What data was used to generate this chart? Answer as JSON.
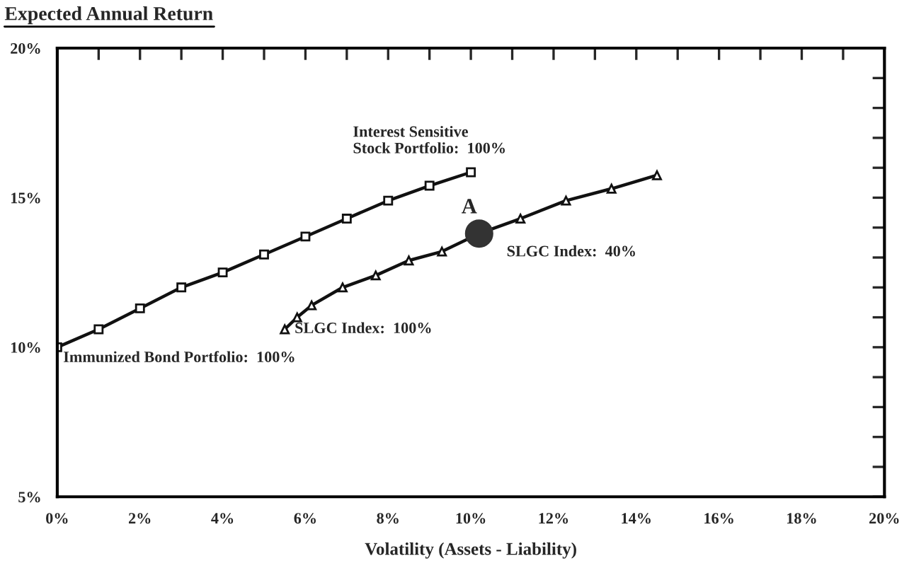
{
  "chart_data": {
    "type": "line",
    "title": "Expected Annual Return",
    "xlabel": "Volatility (Assets - Liability)",
    "xlim": [
      0,
      20
    ],
    "ylim": [
      5,
      20
    ],
    "xticks": [
      {
        "value": 0,
        "label": "0%"
      },
      {
        "value": 1,
        "label": null
      },
      {
        "value": 2,
        "label": "2%"
      },
      {
        "value": 3,
        "label": null
      },
      {
        "value": 4,
        "label": "4%"
      },
      {
        "value": 5,
        "label": null
      },
      {
        "value": 6,
        "label": "6%"
      },
      {
        "value": 7,
        "label": null
      },
      {
        "value": 8,
        "label": "8%"
      },
      {
        "value": 9,
        "label": null
      },
      {
        "value": 10,
        "label": "10%"
      },
      {
        "value": 11,
        "label": null
      },
      {
        "value": 12,
        "label": "12%"
      },
      {
        "value": 13,
        "label": null
      },
      {
        "value": 14,
        "label": "14%"
      },
      {
        "value": 15,
        "label": null
      },
      {
        "value": 16,
        "label": "16%"
      },
      {
        "value": 17,
        "label": null
      },
      {
        "value": 18,
        "label": "18%"
      },
      {
        "value": 19,
        "label": null
      },
      {
        "value": 20,
        "label": "20%"
      }
    ],
    "yticks": [
      {
        "value": 5,
        "label": "5%"
      },
      {
        "value": 6,
        "label": null
      },
      {
        "value": 7,
        "label": null
      },
      {
        "value": 8,
        "label": null
      },
      {
        "value": 9,
        "label": null
      },
      {
        "value": 10,
        "label": "10%"
      },
      {
        "value": 11,
        "label": null
      },
      {
        "value": 12,
        "label": null
      },
      {
        "value": 13,
        "label": null
      },
      {
        "value": 14,
        "label": null
      },
      {
        "value": 15,
        "label": "15%"
      },
      {
        "value": 16,
        "label": null
      },
      {
        "value": 17,
        "label": null
      },
      {
        "value": 18,
        "label": null
      },
      {
        "value": 19,
        "label": null
      },
      {
        "value": 20,
        "label": "20%"
      }
    ],
    "grid": false,
    "line_style": "solid",
    "series": [
      {
        "color": "#111111",
        "marker": "square",
        "x": [
          0,
          1,
          2,
          3,
          4,
          5,
          6,
          7,
          8,
          9,
          10
        ],
        "values": [
          10.0,
          10.6,
          11.3,
          12.0,
          12.5,
          13.1,
          13.7,
          14.3,
          14.9,
          15.4,
          15.85
        ]
      },
      {
        "color": "#111111",
        "marker": "triangle",
        "x": [
          5.5,
          5.8,
          6.15,
          6.9,
          7.7,
          8.5,
          9.3,
          10.2,
          11.2,
          12.3,
          13.4,
          14.5
        ],
        "values": [
          10.6,
          11.0,
          11.4,
          12.0,
          12.4,
          12.9,
          13.2,
          13.8,
          14.3,
          14.9,
          15.3,
          15.75
        ]
      },
      {
        "type": "scatter",
        "color": "#333333",
        "marker": "circle",
        "x": [
          10.2
        ],
        "values": [
          13.8
        ]
      }
    ],
    "annotations": [
      {
        "text": "Interest Sensitive\nStock Portfolio:  100%",
        "x": 10,
        "y": 15.85
      },
      {
        "text": "Immunized Bond Portfolio:  100%",
        "x": 0,
        "y": 10.0
      },
      {
        "text": "SLGC Index:  100%",
        "x": 5.5,
        "y": 10.6
      },
      {
        "text": "A",
        "x": 10.2,
        "y": 13.8
      },
      {
        "text": "SLGC Index:  40%",
        "x": 10.2,
        "y": 13.8
      }
    ]
  }
}
